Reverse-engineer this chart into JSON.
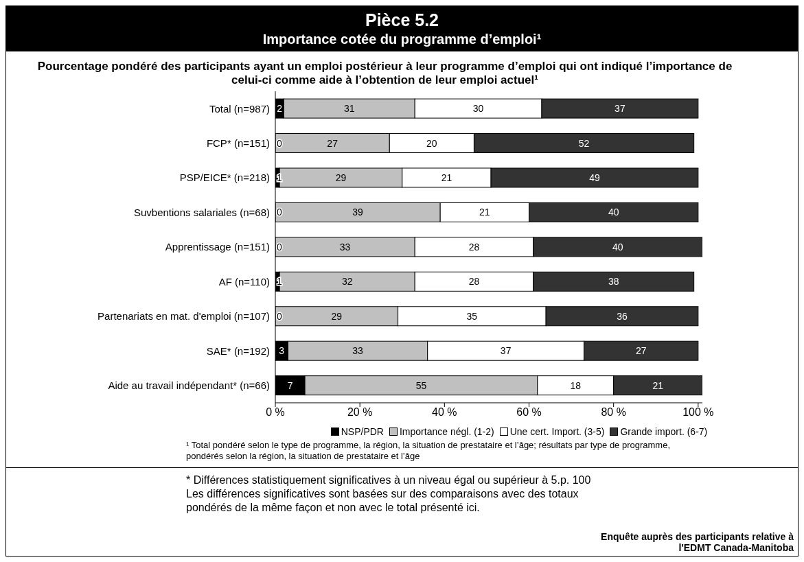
{
  "chart_data": {
    "type": "bar",
    "orientation": "horizontal",
    "stacked": true,
    "title": "Pièce 5.2",
    "subtitle": "Importance cotée du programme d’emploi¹",
    "xlabel": "Pourcentage pondéré des participants ayant un emploi postérieur à leur programme d’emploi qui ont indiqué l’importance de celui-ci comme aide à l’obtention de leur emploi actuel¹",
    "categories": [
      "Total (n=987)",
      "FCP* (n=151)",
      "PSP/EICE* (n=218)",
      "Suvbentions salariales (n=68)",
      "Apprentissage (n=151)",
      "AF (n=110)",
      "Partenariats en mat. d'emploi (n=107)",
      "SAE* (n=192)",
      "Aide au travail indépendant* (n=66)"
    ],
    "series": [
      {
        "name": "NSP/PDR",
        "color": "#000000",
        "values": [
          2,
          0,
          1,
          0,
          0,
          1,
          0,
          3,
          7
        ]
      },
      {
        "name": "Importance négl. (1-2)",
        "color": "#c0c0c0",
        "values": [
          31,
          27,
          29,
          39,
          33,
          32,
          29,
          33,
          55
        ]
      },
      {
        "name": "Une cert. Import. (3-5)",
        "color": "#ffffff",
        "values": [
          30,
          20,
          21,
          21,
          28,
          28,
          35,
          37,
          18
        ]
      },
      {
        "name": "Grande import. (6-7)",
        "color": "#333333",
        "values": [
          37,
          52,
          49,
          40,
          40,
          38,
          36,
          27,
          21
        ]
      }
    ],
    "xlim": [
      0,
      101
    ],
    "xticks": [
      {
        "value": 0,
        "label": "0 %"
      },
      {
        "value": 20,
        "label": "20 %"
      },
      {
        "value": 40,
        "label": "40 %"
      },
      {
        "value": 60,
        "label": "60 %"
      },
      {
        "value": 80,
        "label": "80 %"
      },
      {
        "value": 100,
        "label": "100 %"
      }
    ],
    "data_labels": true,
    "grid": false,
    "legend": "bottom",
    "annotations": [
      "¹  Total pondéré selon le type de programme, la région, la situation de prestataire et l’âge; résultats par type de programme, pondérés selon la région, la situation de prestataire et l’âge",
      "*   Différences statistiquement significatives à un niveau égal ou supérieur à 5.p. 100\nLes différences significatives sont basées sur des comparaisons avec des totaux pondérés de la même façon et non avec le total présenté ici.",
      "Enquête auprès des participants relative à l'EDMT Canada-Manitoba"
    ]
  }
}
